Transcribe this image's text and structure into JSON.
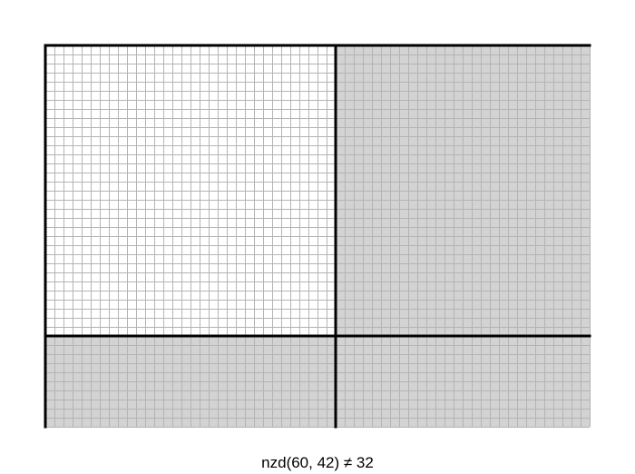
{
  "caption": "nzd(60, 42) ≠ 32",
  "rectangle": {
    "width_units": 60,
    "height_units": 42
  },
  "shaded_square_size_units": 32,
  "colors": {
    "square_fill": "#ffffff",
    "remainder_fill": "#d3d3d3",
    "fine_grid": "#b4b4b4",
    "thick_lines": "#000000"
  }
}
